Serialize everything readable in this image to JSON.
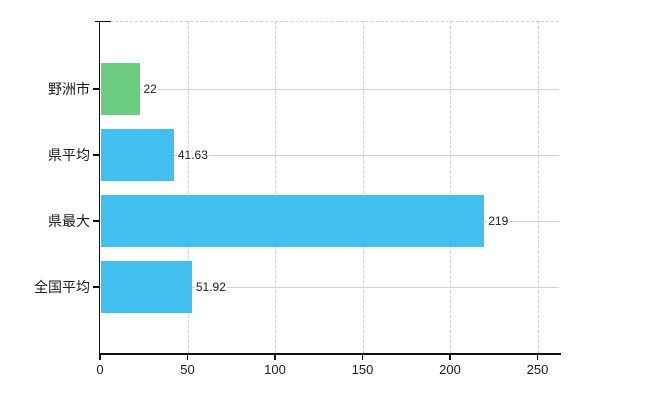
{
  "chart_data": {
    "type": "bar",
    "orientation": "horizontal",
    "title": "",
    "xlabel": "",
    "ylabel": "",
    "categories": [
      "野洲市",
      "県平均",
      "県最大",
      "全国平均"
    ],
    "values": [
      22,
      41.63,
      219,
      51.92
    ],
    "value_labels": [
      "22",
      "41.63",
      "219",
      "51.92"
    ],
    "bar_colors": [
      "#6bcc82",
      "#41bfee",
      "#41bfee",
      "#41bfee"
    ],
    "x_ticks": [
      0,
      50,
      100,
      150,
      200,
      250
    ],
    "x_tick_labels": [
      "0",
      "50",
      "100",
      "150",
      "200",
      "250"
    ],
    "xlim": [
      0,
      262
    ],
    "grid": true,
    "grid_style": {
      "vertical": "dashed",
      "horizontal": "solid"
    },
    "legend": "none"
  },
  "colors": {
    "background": "#ffffff",
    "axis": "#111111",
    "grid": "#d0d0d0",
    "text": "#1c1c1c",
    "green_bar": "#6bcc82",
    "blue_bar": "#41bfee"
  }
}
